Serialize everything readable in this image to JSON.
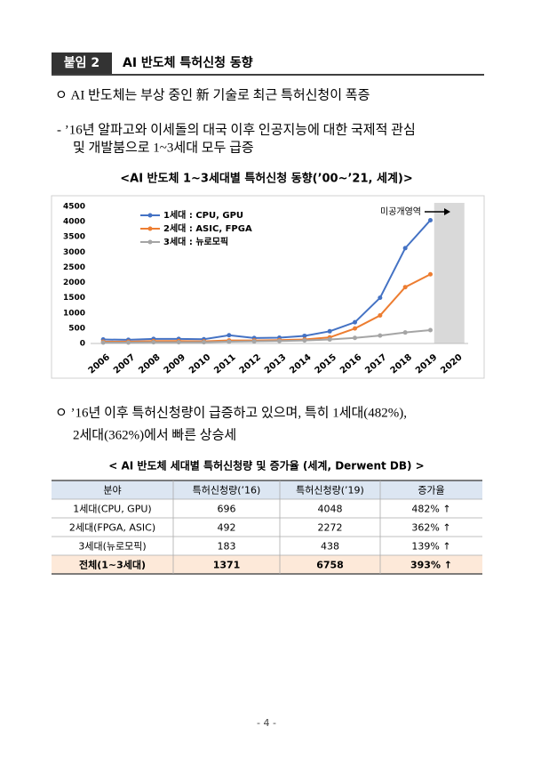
{
  "header": {
    "tag": "붙임 2",
    "title": "AI 반도체 특허신청 동향"
  },
  "bullet1": "ㅇ AI 반도체는 부상 중인 新 기술로 최근 특허신청이 폭증",
  "sub1": [
    "- ’16년 알파고와 이세돌의 대국 이후 인공지능에 대한 국제적 관심",
    "및 개발붐으로 1~3세대 모두 급증"
  ],
  "chart_data": {
    "type": "line",
    "title": "<AI 반도체 1~3세대별 특허신청 동향(’00~’21, 세계)>",
    "annotation": "미공개영역",
    "categories": [
      "2006",
      "2007",
      "2008",
      "2009",
      "2010",
      "2011",
      "2012",
      "2013",
      "2014",
      "2015",
      "2016",
      "2017",
      "2018",
      "2019",
      "2020"
    ],
    "series": [
      {
        "name": "1세대 : CPU, GPU",
        "color": "#4472c4",
        "values": [
          130,
          120,
          150,
          150,
          140,
          270,
          180,
          190,
          250,
          400,
          696,
          1500,
          3130,
          4048,
          null
        ]
      },
      {
        "name": "2세대 : ASIC, FPGA",
        "color": "#ed7d31",
        "values": [
          60,
          60,
          80,
          80,
          70,
          100,
          100,
          110,
          130,
          200,
          492,
          920,
          1850,
          2272,
          null
        ]
      },
      {
        "name": "3세대 : 뉴로모픽",
        "color": "#a5a5a5",
        "values": [
          30,
          30,
          40,
          40,
          40,
          60,
          70,
          80,
          100,
          130,
          183,
          260,
          360,
          438,
          null
        ]
      }
    ],
    "ylim": [
      0,
      4500
    ],
    "yticks": [
      0,
      500,
      1000,
      1500,
      2000,
      2500,
      3000,
      3500,
      4000,
      4500
    ],
    "grid": false
  },
  "bullet2": [
    "ㅇ ’16년 이후 특허신청량이 급증하고 있으며, 특히 1세대(482%),",
    "2세대(362%)에서 빠른 상승세"
  ],
  "table": {
    "title": "< AI 반도체 세대별 특허신청량 및 증가율 (세계, Derwent DB) >",
    "header": [
      "분야",
      "특허신청량(’16)",
      "특허신청량(’19)",
      "증가율"
    ],
    "rows": [
      [
        "1세대(CPU, GPU)",
        "696",
        "4048",
        "482% ↑"
      ],
      [
        "2세대(FPGA, ASIC)",
        "492",
        "2272",
        "362% ↑"
      ],
      [
        "3세대(뉴로모픽)",
        "183",
        "438",
        "139% ↑"
      ],
      [
        "전체(1~3세대)",
        "1371",
        "6758",
        "393% ↑"
      ]
    ]
  },
  "footer": "- 4 -"
}
